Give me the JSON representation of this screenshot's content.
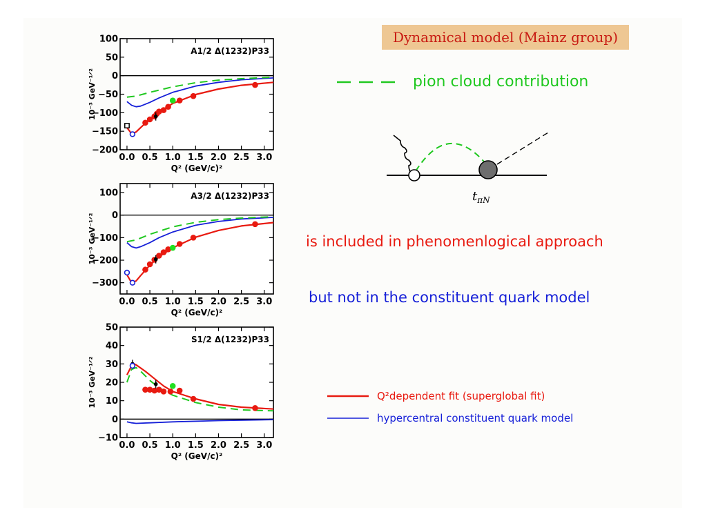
{
  "header": {
    "title": "Dynamical model (Mainz group)"
  },
  "pion_legend": {
    "label": "pion cloud contribution",
    "color": "#20c820"
  },
  "diagram": {
    "vertex_label": "t",
    "vertex_sub": "πN"
  },
  "notes": {
    "phenom": "is included in phenomenlogical approach",
    "cqm": "but not in the constituent quark model"
  },
  "legend": {
    "fit": "Q²dependent fit (superglobal fit)",
    "cqm": "hypercentral constituent quark model"
  },
  "colors": {
    "fit": "#e81a10",
    "cqm": "#1620d8",
    "pion": "#20c820"
  },
  "chart_data": [
    {
      "type": "line",
      "title": "A1/2 Δ(1232)P33",
      "xlabel": "Q² (GeV/c)²",
      "ylabel": "10⁻³ GeV⁻¹ᐟ²",
      "xlim": [
        -0.15,
        3.2
      ],
      "ylim": [
        -200,
        100
      ],
      "xticks": [
        "0.0",
        "0.5",
        "1.0",
        "1.5",
        "2.0",
        "2.5",
        "3.0"
      ],
      "yticks": [
        "100",
        "50",
        "0",
        "−50",
        "−100",
        "−150",
        "−200"
      ],
      "ytick_values": [
        100,
        50,
        0,
        -50,
        -100,
        -150,
        -200
      ],
      "series": [
        {
          "role": "fit",
          "x": [
            0,
            0.1,
            0.2,
            0.3,
            0.5,
            0.7,
            1.0,
            1.5,
            2.0,
            2.5,
            3.2
          ],
          "y": [
            -140,
            -157,
            -152,
            -140,
            -117,
            -98,
            -75,
            -51,
            -36,
            -26,
            -18
          ]
        },
        {
          "role": "cqm",
          "x": [
            0,
            0.1,
            0.2,
            0.3,
            0.5,
            0.7,
            1.0,
            1.5,
            2.0,
            2.5,
            3.2
          ],
          "y": [
            -70,
            -80,
            -84,
            -82,
            -72,
            -60,
            -45,
            -28,
            -18,
            -11,
            -6
          ]
        },
        {
          "role": "pion",
          "x": [
            0,
            0.2,
            0.5,
            1.0,
            1.5,
            2.0,
            2.5,
            3.2
          ],
          "y": [
            -58,
            -55,
            -45,
            -30,
            -19,
            -12,
            -8,
            -4
          ]
        }
      ],
      "points_red": {
        "x": [
          0.4,
          0.5,
          0.6,
          0.65,
          0.7,
          0.8,
          0.9,
          1.15,
          1.45,
          2.8
        ],
        "y": [
          -127,
          -118,
          -110,
          -103,
          -97,
          -93,
          -84,
          -67,
          -55,
          -25
        ]
      },
      "points_green": {
        "x": [
          1.0
        ],
        "y": [
          -67
        ]
      },
      "points_black": {
        "x": [
          0.63
        ],
        "y": [
          -110
        ]
      },
      "points_open": {
        "x": [
          0.12
        ],
        "y": [
          -158
        ]
      },
      "points_square": {
        "x": [
          0.0
        ],
        "y": [
          -135
        ]
      }
    },
    {
      "type": "line",
      "title": "A3/2 Δ(1232)P33",
      "xlabel": "Q² (GeV/c)²",
      "ylabel": "10⁻³ GeV⁻¹ᐟ²",
      "xlim": [
        -0.15,
        3.2
      ],
      "ylim": [
        -350,
        140
      ],
      "xticks": [
        "0.0",
        "0.5",
        "1.0",
        "1.5",
        "2.0",
        "2.5",
        "3.0"
      ],
      "yticks": [
        "100",
        "0",
        "−100",
        "−200",
        "−300"
      ],
      "ytick_values": [
        100,
        0,
        -100,
        -200,
        -300
      ],
      "series": [
        {
          "role": "fit",
          "x": [
            0,
            0.1,
            0.2,
            0.3,
            0.5,
            0.7,
            1.0,
            1.5,
            2.0,
            2.5,
            3.2
          ],
          "y": [
            -265,
            -300,
            -292,
            -268,
            -222,
            -185,
            -145,
            -98,
            -68,
            -48,
            -33
          ]
        },
        {
          "role": "cqm",
          "x": [
            0,
            0.1,
            0.2,
            0.3,
            0.5,
            0.7,
            1.0,
            1.5,
            2.0,
            2.5,
            3.2
          ],
          "y": [
            -122,
            -140,
            -146,
            -140,
            -122,
            -100,
            -75,
            -45,
            -28,
            -17,
            -10
          ]
        },
        {
          "role": "pion",
          "x": [
            0,
            0.2,
            0.5,
            1.0,
            1.5,
            2.0,
            2.5,
            3.2
          ],
          "y": [
            -118,
            -110,
            -85,
            -52,
            -32,
            -20,
            -13,
            -7
          ]
        }
      ],
      "points_red": {
        "x": [
          0.4,
          0.5,
          0.6,
          0.7,
          0.8,
          0.9,
          1.15,
          1.45,
          2.8
        ],
        "y": [
          -242,
          -218,
          -198,
          -180,
          -165,
          -152,
          -128,
          -100,
          -40
        ]
      },
      "points_green": {
        "x": [
          1.0
        ],
        "y": [
          -145
        ]
      },
      "points_black": {
        "x": [
          0.63
        ],
        "y": [
          -196
        ]
      },
      "points_open": {
        "x": [
          0.0,
          0.12
        ],
        "y": [
          -255,
          -300
        ]
      },
      "points_square": {
        "x": [],
        "y": []
      }
    },
    {
      "type": "line",
      "title": "S1/2 Δ(1232)P33",
      "xlabel": "Q² (GeV/c)²",
      "ylabel": "10⁻³ GeV⁻¹ᐟ²",
      "xlim": [
        -0.15,
        3.2
      ],
      "ylim": [
        -10,
        50
      ],
      "xticks": [
        "0.0",
        "0.5",
        "1.0",
        "1.5",
        "2.0",
        "2.5",
        "3.0"
      ],
      "yticks": [
        "50",
        "40",
        "30",
        "20",
        "10",
        "0",
        "−10"
      ],
      "ytick_values": [
        50,
        40,
        30,
        20,
        10,
        0,
        -10
      ],
      "series": [
        {
          "role": "fit",
          "x": [
            0,
            0.1,
            0.15,
            0.2,
            0.4,
            0.6,
            0.8,
            1.0,
            1.5,
            2.0,
            2.5,
            3.2
          ],
          "y": [
            24,
            29,
            30,
            29.5,
            26,
            22,
            18,
            15,
            11,
            8,
            6.5,
            5.5
          ]
        },
        {
          "role": "cqm",
          "x": [
            0,
            0.1,
            0.2,
            0.5,
            1.0,
            2.0,
            3.2
          ],
          "y": [
            -1.5,
            -2,
            -2.3,
            -2,
            -1.5,
            -0.8,
            -0.3
          ]
        },
        {
          "role": "pion",
          "x": [
            0,
            0.1,
            0.2,
            0.3,
            0.5,
            0.7,
            1.0,
            1.5,
            2.0,
            2.5,
            3.2
          ],
          "y": [
            20,
            27,
            28,
            26,
            21,
            17,
            13,
            9,
            6.5,
            5,
            4.5
          ]
        }
      ],
      "points_red": {
        "x": [
          0.4,
          0.5,
          0.6,
          0.7,
          0.8,
          0.95,
          1.15,
          1.45,
          2.8
        ],
        "y": [
          16,
          16,
          15.5,
          16,
          15,
          15,
          15.5,
          11,
          6
        ]
      },
      "points_green": {
        "x": [
          1.0
        ],
        "y": [
          18
        ]
      },
      "points_black": {
        "x": [
          0.63,
          0.12
        ],
        "y": [
          19,
          30
        ]
      },
      "points_open": {
        "x": [
          0.12
        ],
        "y": [
          29
        ]
      },
      "points_square": {
        "x": [],
        "y": []
      }
    }
  ]
}
